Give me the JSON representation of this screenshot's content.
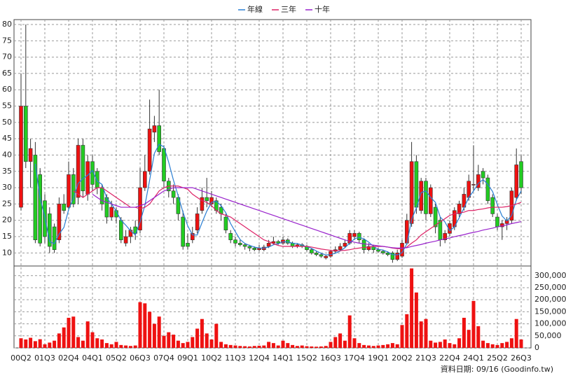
{
  "chart_data": {
    "type": "candlestick",
    "legend": [
      "年線",
      "三年",
      "十年"
    ],
    "footer": "資料日期: 09/16 (Goodinfo.tw)",
    "x": [
      "00Q2",
      null,
      null,
      null,
      null,
      "01Q3",
      null,
      null,
      null,
      null,
      "02Q4",
      null,
      null,
      null,
      null,
      "04Q1",
      null,
      null,
      null,
      null,
      "05Q2",
      null,
      null,
      null,
      null,
      "06Q3",
      null,
      null,
      null,
      null,
      "07Q4",
      null,
      null,
      null,
      null,
      "09Q1",
      null,
      null,
      null,
      null,
      "10Q2",
      null,
      null,
      null,
      null,
      "11Q3",
      null,
      null,
      null,
      null,
      "12Q4",
      null,
      null,
      null,
      null,
      "14Q1",
      null,
      null,
      null,
      null,
      "15Q2",
      null,
      null,
      null,
      null,
      "16Q3",
      null,
      null,
      null,
      null,
      "17Q4",
      null,
      null,
      null,
      null,
      "19Q1",
      null,
      null,
      null,
      null,
      "20Q2",
      null,
      null,
      null,
      null,
      "21Q3",
      null,
      null,
      null,
      null,
      "22Q4",
      null,
      null,
      null,
      null,
      "24Q1",
      null,
      null,
      null,
      null,
      "25Q2",
      null,
      null,
      null,
      null,
      "26Q3"
    ],
    "up_color": "#ee1111",
    "down_color": "#22cc22",
    "volume_color": "#ee1111",
    "ohlc": [
      [
        24,
        65,
        23,
        55
      ],
      [
        55,
        80,
        36,
        38
      ],
      [
        38,
        45,
        30,
        42
      ],
      [
        40,
        44,
        13,
        14
      ],
      [
        34,
        36,
        12,
        13
      ],
      [
        26,
        28,
        13,
        15
      ],
      [
        22,
        24,
        10,
        12
      ],
      [
        18,
        19,
        10,
        11
      ],
      [
        14,
        27,
        13,
        25
      ],
      [
        25,
        28,
        22,
        23
      ],
      [
        24,
        38,
        23,
        34
      ],
      [
        34,
        36,
        24,
        25
      ],
      [
        27,
        45,
        25,
        43
      ],
      [
        43,
        45,
        27,
        29
      ],
      [
        28,
        40,
        26,
        38
      ],
      [
        38,
        40,
        29,
        31
      ],
      [
        35,
        36,
        28,
        30
      ],
      [
        30,
        31,
        23,
        25
      ],
      [
        27,
        28,
        19,
        21
      ],
      [
        21,
        26,
        20,
        24
      ],
      [
        23,
        24,
        19,
        21
      ],
      [
        20,
        21,
        13,
        14
      ],
      [
        13,
        17,
        12,
        15
      ],
      [
        15,
        18,
        13,
        17
      ],
      [
        18,
        20,
        14,
        16
      ],
      [
        17,
        36,
        16,
        30
      ],
      [
        30,
        40,
        29,
        35
      ],
      [
        35,
        57,
        34,
        48
      ],
      [
        47,
        52,
        44,
        49
      ],
      [
        49,
        60,
        40,
        41
      ],
      [
        42,
        43,
        30,
        32
      ],
      [
        32,
        33,
        27,
        29
      ],
      [
        29,
        31,
        25,
        27
      ],
      [
        27,
        28,
        20,
        22
      ],
      [
        21,
        23,
        11,
        12
      ],
      [
        13,
        16,
        11,
        12
      ],
      [
        14,
        18,
        13,
        16
      ],
      [
        17,
        24,
        16,
        22
      ],
      [
        23,
        30,
        22,
        27
      ],
      [
        27,
        33,
        24,
        26
      ],
      [
        25,
        29,
        24,
        27
      ],
      [
        26,
        27,
        22,
        23
      ],
      [
        24,
        25,
        20,
        22
      ],
      [
        21,
        22,
        16,
        17
      ],
      [
        16,
        17,
        13,
        14
      ],
      [
        14,
        15,
        12,
        13
      ],
      [
        13,
        14,
        12,
        12.5
      ],
      [
        12.5,
        13,
        11,
        12
      ],
      [
        12,
        12.5,
        10.5,
        11.5
      ],
      [
        11.5,
        12,
        10.5,
        11
      ],
      [
        11,
        12.5,
        10.5,
        11.5
      ],
      [
        11,
        12.5,
        10.5,
        11.8
      ],
      [
        12,
        14,
        11.5,
        13
      ],
      [
        13,
        15,
        12.5,
        13.5
      ],
      [
        13.5,
        14,
        12.5,
        13
      ],
      [
        13,
        15,
        12.5,
        14
      ],
      [
        14,
        14.5,
        12.5,
        13
      ],
      [
        13,
        13.5,
        11.5,
        12
      ],
      [
        12,
        13,
        11.5,
        12.5
      ],
      [
        12.5,
        13,
        11.5,
        12
      ],
      [
        12,
        12.5,
        10.5,
        11
      ],
      [
        11,
        11.5,
        9.5,
        10
      ],
      [
        10,
        10.5,
        9,
        9.5
      ],
      [
        9.5,
        10,
        8.5,
        9
      ],
      [
        8.5,
        9.5,
        8,
        9
      ],
      [
        9,
        11,
        8.5,
        10.5
      ],
      [
        10.5,
        12,
        10,
        11
      ],
      [
        11,
        13,
        10.5,
        12
      ],
      [
        12,
        14,
        11.5,
        13
      ],
      [
        13,
        17,
        12.5,
        16
      ],
      [
        15,
        17,
        14,
        16
      ],
      [
        16,
        16.5,
        13,
        14
      ],
      [
        14,
        14.5,
        10,
        11
      ],
      [
        11,
        13,
        10.5,
        12
      ],
      [
        12,
        12.5,
        10,
        11
      ],
      [
        11,
        11.5,
        10,
        10.5
      ],
      [
        10.5,
        11,
        9.5,
        10
      ],
      [
        10,
        10.5,
        9,
        9.5
      ],
      [
        10,
        10.5,
        7,
        8
      ],
      [
        8,
        11,
        7.5,
        10
      ],
      [
        9,
        14,
        8.5,
        13
      ],
      [
        13,
        22,
        12.5,
        20
      ],
      [
        19,
        44,
        18,
        38
      ],
      [
        38,
        40,
        22,
        24
      ],
      [
        23,
        33,
        22,
        32
      ],
      [
        32,
        33,
        20,
        22
      ],
      [
        22,
        31,
        21,
        30
      ],
      [
        24,
        25,
        16,
        18
      ],
      [
        20,
        21,
        12,
        14
      ],
      [
        14,
        17,
        13,
        16
      ],
      [
        16,
        20,
        15,
        19
      ],
      [
        18,
        24,
        17,
        23
      ],
      [
        22,
        26,
        21,
        25
      ],
      [
        24,
        30,
        23,
        28
      ],
      [
        27,
        34,
        26,
        32
      ],
      [
        31,
        43,
        29,
        31
      ],
      [
        30,
        37,
        29,
        34
      ],
      [
        35,
        36,
        31,
        33
      ],
      [
        33,
        34,
        25,
        26
      ],
      [
        27,
        28,
        21,
        22
      ],
      [
        21,
        22,
        17,
        18
      ],
      [
        18,
        20,
        14,
        19
      ],
      [
        19,
        21,
        17,
        20
      ],
      [
        20,
        30,
        19,
        29
      ],
      [
        27,
        42,
        26,
        37
      ],
      [
        38,
        40,
        28,
        30
      ]
    ],
    "volume": [
      40000,
      35000,
      42000,
      28000,
      36000,
      15000,
      22000,
      30000,
      60000,
      85000,
      125000,
      130000,
      45000,
      30000,
      110000,
      65000,
      40000,
      35000,
      20000,
      15000,
      25000,
      12000,
      10000,
      8000,
      10000,
      190000,
      185000,
      150000,
      100000,
      130000,
      50000,
      65000,
      55000,
      30000,
      20000,
      25000,
      45000,
      80000,
      120000,
      60000,
      35000,
      100000,
      25000,
      15000,
      12000,
      10000,
      8000,
      7000,
      6000,
      8000,
      9000,
      10000,
      25000,
      20000,
      10000,
      30000,
      20000,
      12000,
      8000,
      10000,
      7000,
      6000,
      5000,
      6000,
      8000,
      25000,
      45000,
      60000,
      30000,
      135000,
      40000,
      20000,
      12000,
      10000,
      8000,
      10000,
      12000,
      15000,
      20000,
      15000,
      95000,
      140000,
      330000,
      230000,
      110000,
      120000,
      30000,
      22000,
      25000,
      35000,
      20000,
      15000,
      40000,
      125000,
      75000,
      195000,
      90000,
      30000,
      20000,
      15000,
      12000,
      20000,
      25000,
      40000,
      120000,
      35000
    ],
    "series": [
      {
        "name": "年線",
        "color": "#2a7fd4",
        "values": [
          null,
          null,
          null,
          37.3,
          26.8,
          21,
          13.5,
          12.8,
          15.8,
          17.8,
          23.3,
          26.8,
          31.3,
          32.8,
          33.8,
          35.3,
          32,
          31,
          26.8,
          25,
          22.8,
          20,
          18.5,
          16.8,
          15.5,
          19.5,
          24.5,
          32.3,
          40.5,
          43.3,
          42.5,
          37.8,
          32.3,
          27.5,
          22.5,
          18.3,
          15.5,
          15.5,
          19.3,
          22.8,
          25.5,
          25.8,
          24.5,
          22.3,
          19,
          16.5,
          14.1,
          12.9,
          12.3,
          11.8,
          11.5,
          11.5,
          11.8,
          12.5,
          12.8,
          13.4,
          13.4,
          13,
          12.9,
          12.4,
          11.9,
          11.4,
          10.6,
          9.9,
          9.4,
          9.5,
          9.9,
          10.6,
          11.6,
          13,
          14.3,
          14.8,
          14.3,
          13.3,
          12,
          11.1,
          10.9,
          10.3,
          9.5,
          9.4,
          10.1,
          12.8,
          20.3,
          23.8,
          28.5,
          29,
          27,
          25.5,
          21,
          19.5,
          16.8,
          18,
          20.8,
          23.8,
          27,
          29,
          31.3,
          32.5,
          31,
          28.8,
          24.8,
          21.3,
          19.8,
          21.5,
          26.3,
          29
        ]
      },
      {
        "name": "三年",
        "color": "#dd2266",
        "values": [
          null,
          null,
          null,
          null,
          null,
          null,
          null,
          null,
          null,
          null,
          null,
          29,
          28,
          27,
          28,
          29,
          30,
          30,
          29,
          28,
          27,
          26,
          25,
          24,
          24,
          23.5,
          24,
          25,
          27,
          29,
          30,
          30.5,
          30.5,
          30.5,
          30,
          29.5,
          28,
          27,
          26,
          25.5,
          24.5,
          23,
          22,
          21.5,
          21,
          20,
          19,
          18,
          17,
          16,
          15,
          14,
          13.5,
          12.8,
          12.3,
          12,
          12,
          12,
          12,
          12,
          12,
          11.8,
          11.5,
          11.2,
          11,
          10.8,
          10.7,
          10.7,
          10.8,
          11,
          11.3,
          11.5,
          11.7,
          11.8,
          12,
          12,
          12,
          11.8,
          11.5,
          11.3,
          11.3,
          11.8,
          13,
          14,
          15.5,
          16.5,
          17.5,
          18.5,
          19.5,
          20.5,
          21.5,
          22,
          22.3,
          22.5,
          23,
          23,
          23.3,
          23.5,
          23.8,
          24,
          24,
          24,
          24.2,
          24.5,
          25,
          25.5
        ]
      },
      {
        "name": "十年",
        "color": "#9922cc",
        "values": [
          null,
          null,
          null,
          null,
          null,
          null,
          null,
          null,
          null,
          null,
          null,
          null,
          null,
          null,
          null,
          28,
          27,
          26,
          25.5,
          25,
          24.5,
          24,
          24,
          24,
          24,
          24.5,
          25,
          26,
          27,
          28,
          29,
          29.5,
          30,
          30,
          30,
          30,
          30,
          29.5,
          29,
          28.5,
          28,
          27.5,
          27,
          26.5,
          26,
          25.5,
          25,
          24.5,
          24,
          23.5,
          23,
          22.5,
          22,
          21.5,
          21,
          20.5,
          20,
          19.5,
          19,
          18.5,
          18,
          17.5,
          17,
          16.5,
          16,
          15.5,
          15,
          14.5,
          14,
          13.6,
          13.3,
          13,
          12.8,
          12.6,
          12.4,
          12.2,
          12,
          11.8,
          11.6,
          11.5,
          11.5,
          11.6,
          12,
          12.3,
          12.6,
          13,
          13.3,
          13.6,
          14,
          14.3,
          14.6,
          15,
          15.3,
          15.6,
          16,
          16.3,
          16.6,
          17,
          17.3,
          17.6,
          18,
          18.3,
          18.6,
          19,
          19.3,
          19.6
        ]
      }
    ],
    "ylim": [
      6,
      81.5
    ],
    "yticks": [
      10,
      15,
      20,
      25,
      30,
      35,
      40,
      45,
      50,
      55,
      60,
      65,
      70,
      75,
      80
    ],
    "y2lim": [
      0,
      340000
    ],
    "y2ticks": [
      {
        "value": 0,
        "label": "0"
      },
      {
        "value": 50000,
        "label": "50,000"
      },
      {
        "value": 100000,
        "label": "100,000"
      },
      {
        "value": 150000,
        "label": "150,000"
      },
      {
        "value": 200000,
        "label": "200,000"
      },
      {
        "value": 250000,
        "label": "250,000"
      },
      {
        "value": 300000,
        "label": "300,000"
      }
    ],
    "grid": true
  }
}
